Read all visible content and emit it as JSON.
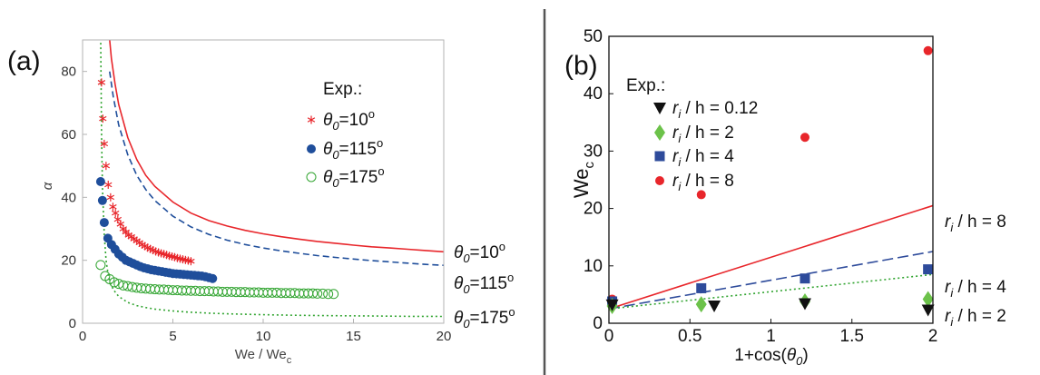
{
  "divider_color": "#555555",
  "chart_data": [
    {
      "panel_label": "(a)",
      "type": "scatter",
      "xlabel": "We / Wec",
      "xlabel_main": "We / We",
      "xlabel_sub": "c",
      "ylabel": "α",
      "xlim": [
        0,
        20
      ],
      "ylim": [
        0,
        90
      ],
      "xticks": [
        0,
        5,
        10,
        15,
        20
      ],
      "yticks": [
        0,
        20,
        40,
        60,
        80
      ],
      "legend_title": "Exp.:",
      "legend_placement": "top-right",
      "grid": false,
      "series": [
        {
          "name": "θ0=10°",
          "sym": "θ",
          "sub": "0",
          "eq": "=10",
          "sup": "o",
          "marker": "asterisk",
          "color": "#e8262b",
          "x": [
            1.05,
            1.12,
            1.2,
            1.3,
            1.42,
            1.55,
            1.68,
            1.82,
            1.95,
            2.1,
            2.25,
            2.4,
            2.55,
            2.7,
            2.85,
            3.0,
            3.15,
            3.3,
            3.45,
            3.6,
            3.75,
            3.9,
            4.05,
            4.2,
            4.35,
            4.5,
            4.65,
            4.8,
            4.95,
            5.1,
            5.25,
            5.4,
            5.55,
            5.7,
            5.85,
            6.0
          ],
          "y": [
            76.5,
            65,
            57,
            50,
            44,
            40,
            37,
            35,
            33,
            31.5,
            30,
            29,
            28,
            27.5,
            26.8,
            26.2,
            25.6,
            25,
            24.5,
            24,
            23.6,
            23.2,
            22.8,
            22.5,
            22.2,
            22,
            21.7,
            21.4,
            21.2,
            21,
            20.7,
            20.5,
            20.3,
            20.1,
            19.9,
            19.7
          ]
        },
        {
          "name": "θ0=115°",
          "sym": "θ",
          "sub": "0",
          "eq": "=115",
          "sup": "o",
          "marker": "filled-circle",
          "color": "#1f4e9b",
          "x": [
            1.0,
            1.1,
            1.2,
            1.4,
            1.6,
            1.8,
            2.0,
            2.2,
            2.4,
            2.6,
            2.8,
            3.0,
            3.2,
            3.4,
            3.6,
            3.8,
            4.0,
            4.2,
            4.4,
            4.6,
            4.8,
            5.0,
            5.2,
            5.4,
            5.6,
            5.8,
            6.0,
            6.2,
            6.4,
            6.6,
            6.8,
            7.0,
            7.2
          ],
          "y": [
            45,
            39,
            32,
            27,
            25,
            23.5,
            22,
            21,
            20,
            19.5,
            19,
            18.5,
            18,
            17.6,
            17.3,
            17,
            16.8,
            16.6,
            16.4,
            16.2,
            16,
            15.8,
            15.7,
            15.6,
            15.5,
            15.4,
            15.3,
            15.2,
            15.1,
            15,
            14.8,
            14.5,
            14.2
          ]
        },
        {
          "name": "θ0=175°",
          "sym": "θ",
          "sub": "0",
          "eq": "=175",
          "sup": "o",
          "marker": "open-circle",
          "color": "#33a532",
          "x": [
            1.0,
            1.25,
            1.5,
            1.75,
            2.0,
            2.25,
            2.5,
            2.75,
            3.0,
            3.25,
            3.5,
            3.75,
            4.0,
            4.25,
            4.5,
            4.75,
            5.0,
            5.25,
            5.5,
            5.75,
            6.0,
            6.25,
            6.5,
            6.75,
            7.0,
            7.25,
            7.5,
            7.75,
            8.0,
            8.25,
            8.5,
            8.75,
            9.0,
            9.25,
            9.5,
            9.75,
            10.0,
            10.25,
            10.5,
            10.75,
            11.0,
            11.25,
            11.5,
            11.75,
            12.0,
            12.25,
            12.5,
            12.75,
            13.0,
            13.3,
            13.6,
            13.9
          ],
          "y": [
            18.5,
            15,
            14,
            13,
            12.5,
            12,
            11.8,
            11.5,
            11.3,
            11.1,
            11,
            10.9,
            10.8,
            10.7,
            10.7,
            10.6,
            10.5,
            10.5,
            10.4,
            10.4,
            10.3,
            10.3,
            10.2,
            10.2,
            10.2,
            10.1,
            10.1,
            10,
            10,
            10,
            9.9,
            9.9,
            9.9,
            9.8,
            9.8,
            9.8,
            9.7,
            9.7,
            9.7,
            9.7,
            9.6,
            9.6,
            9.6,
            9.6,
            9.5,
            9.5,
            9.5,
            9.5,
            9.4,
            9.4,
            9.3,
            9.3
          ]
        }
      ],
      "model_curves": [
        {
          "sym": "θ",
          "sub": "0",
          "eq": "=10",
          "sup": "o",
          "style": "solid",
          "color": "#e8262b",
          "x": [
            1.4,
            1.6,
            1.8,
            2,
            2.5,
            3,
            3.5,
            4,
            5,
            6,
            7,
            8,
            9,
            10,
            11,
            12,
            13,
            14,
            15,
            16,
            17,
            18,
            19,
            20
          ],
          "y": [
            96,
            84,
            76,
            69.5,
            59,
            52,
            47,
            43.5,
            38.5,
            35,
            32.6,
            30.9,
            29.5,
            28.4,
            27.5,
            26.7,
            26,
            25.4,
            24.8,
            24.3,
            23.9,
            23.5,
            23.1,
            22.7
          ]
        },
        {
          "sym": "θ",
          "sub": "0",
          "eq": "=115",
          "sup": "o",
          "style": "dashed",
          "color": "#1f4e9b",
          "x": [
            1.5,
            1.7,
            2,
            2.5,
            3,
            3.5,
            4,
            5,
            6,
            7,
            8,
            9,
            10,
            11,
            12,
            13,
            14,
            15,
            16,
            17,
            18,
            19,
            20
          ],
          "y": [
            80,
            72,
            63,
            53.5,
            47,
            42.5,
            39,
            34,
            30.6,
            28.2,
            26.4,
            25,
            23.9,
            23,
            22.2,
            21.5,
            20.9,
            20.4,
            19.9,
            19.5,
            19.1,
            18.7,
            18.4
          ]
        },
        {
          "sym": "θ",
          "sub": "0",
          "eq": "=175",
          "sup": "o",
          "style": "dotted",
          "color": "#33a532",
          "x": [
            1.0,
            1.05,
            1.1,
            1.2,
            1.3,
            1.4,
            1.5,
            1.7,
            2,
            2.5,
            3,
            3.5,
            4,
            5,
            6,
            7,
            8,
            10,
            12,
            14,
            16,
            18,
            20
          ],
          "y": [
            92,
            60,
            43,
            28,
            20,
            16,
            13.5,
            10.7,
            8.5,
            6.6,
            5.6,
            5,
            4.5,
            3.9,
            3.5,
            3.2,
            3,
            2.7,
            2.5,
            2.4,
            2.3,
            2.2,
            2.15
          ]
        }
      ]
    },
    {
      "panel_label": "(b)",
      "type": "scatter",
      "xlabel": "1+cos(θ0)",
      "xlabel_pre": "1+cos(",
      "xlabel_sym": "θ",
      "xlabel_sub": "0",
      "xlabel_post": ")",
      "ylabel": "Wec",
      "ylabel_main": "We",
      "ylabel_sub": "c",
      "xlim": [
        0,
        2
      ],
      "ylim": [
        0,
        50
      ],
      "xticks": [
        0,
        0.5,
        1,
        1.5,
        2
      ],
      "yticks": [
        0,
        10,
        20,
        30,
        40,
        50
      ],
      "legend_title": "Exp.:",
      "legend_placement": "top-left",
      "grid": false,
      "series": [
        {
          "name": "ri / h = 0.12",
          "sym": "r",
          "sub": "i",
          "rest": "/ h = 0.12",
          "marker": "triangle-down",
          "color": "#111111",
          "x": [
            0.02,
            0.65,
            1.21,
            1.97
          ],
          "y": [
            3.2,
            3.0,
            3.4,
            2.3
          ]
        },
        {
          "name": "ri / h = 2",
          "sym": "r",
          "sub": "i",
          "rest": "/ h = 2",
          "marker": "diamond",
          "color": "#6cc24a",
          "x": [
            0.02,
            0.57,
            1.21,
            1.97
          ],
          "y": [
            3.0,
            3.3,
            3.8,
            4.2
          ]
        },
        {
          "name": "ri / h = 4",
          "sym": "r",
          "sub": "i",
          "rest": "/ h = 4",
          "marker": "square",
          "color": "#2e4b9b",
          "x": [
            0.02,
            0.57,
            1.21,
            1.97
          ],
          "y": [
            3.8,
            6.1,
            7.8,
            9.4
          ]
        },
        {
          "name": "ri / h = 8",
          "sym": "r",
          "sub": "i",
          "rest": "/ h = 8",
          "marker": "filled-circle",
          "color": "#e8262b",
          "x": [
            0.02,
            0.57,
            1.21,
            1.97
          ],
          "y": [
            4.2,
            22.4,
            32.4,
            47.5
          ]
        }
      ],
      "model_curves": [
        {
          "sym": "r",
          "sub": "i",
          "rest": "/ h = 8",
          "style": "solid",
          "color": "#e8262b",
          "x": [
            0,
            2
          ],
          "y": [
            2.5,
            20.5
          ]
        },
        {
          "sym": "r",
          "sub": "i",
          "rest": "/ h = 4",
          "style": "dashed",
          "color": "#2e4b9b",
          "x": [
            0,
            2
          ],
          "y": [
            2.5,
            12.5
          ]
        },
        {
          "sym": "r",
          "sub": "i",
          "rest": "/ h = 2",
          "style": "dotted",
          "color": "#33a532",
          "x": [
            0,
            2
          ],
          "y": [
            2.5,
            8.5
          ]
        }
      ]
    }
  ]
}
